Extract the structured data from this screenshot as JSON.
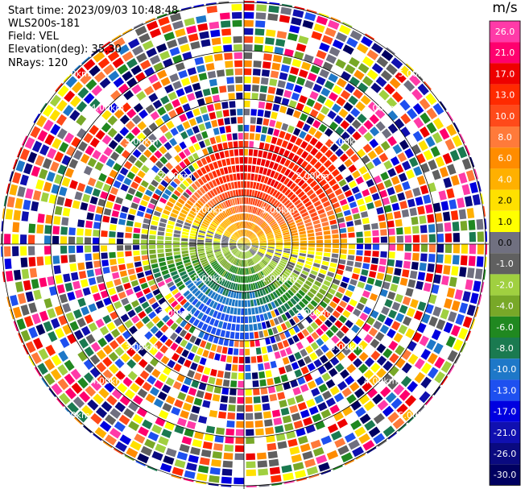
{
  "header": {
    "start_time": "Start time: 2023/09/03 10:48:48",
    "instrument": "WLS200s-181",
    "field": "Field: VEL",
    "elevation": "Elevation(deg): 35.30",
    "nrays": "NRays: 120"
  },
  "chart_data": {
    "type": "heatmap",
    "subtype": "polar-ppi",
    "field": "VEL",
    "units": "m/s",
    "range_rings": [
      "1.00km",
      "2.00km",
      "3.00km",
      "4.00km",
      "5.00km"
    ],
    "nrays": 120,
    "colorbar": {
      "title": "m/s",
      "ticks": [
        "26.0",
        "21.0",
        "17.0",
        "13.0",
        "10.0",
        "8.0",
        "6.0",
        "4.0",
        "2.0",
        "1.0",
        "0.0",
        "-1.0",
        "-2.0",
        "-4.0",
        "-6.0",
        "-8.0",
        "-10.0",
        "-13.0",
        "-17.0",
        "-21.0",
        "-26.0",
        "-30.0"
      ],
      "colors": [
        "#ff3aa8",
        "#ff006e",
        "#ee0000",
        "#ff2a00",
        "#ff4a1a",
        "#ff7a3a",
        "#ff8c00",
        "#ffb000",
        "#ffe000",
        "#ffff00",
        "#707080",
        "#606060",
        "#a0d040",
        "#78a828",
        "#208820",
        "#1a7a50",
        "#1e78c8",
        "#1e50f0",
        "#0000e0",
        "#1010b0",
        "#0a0a80",
        "#000060"
      ]
    },
    "inner_range_km": 1.0,
    "outer_noise_range_km": 2.2
  }
}
